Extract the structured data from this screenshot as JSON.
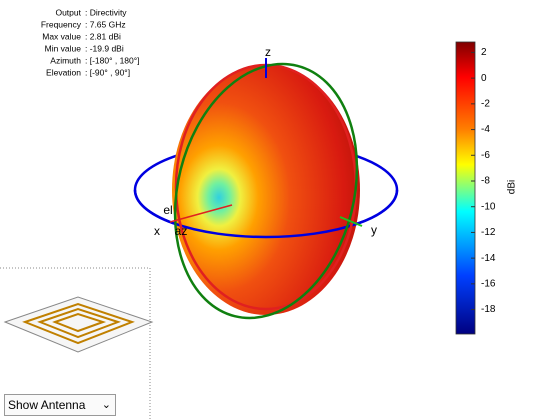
{
  "info": [
    {
      "label": "Output",
      "value": ": Directivity"
    },
    {
      "label": "Frequency",
      "value": ": 7.65 GHz"
    },
    {
      "label": "Max value",
      "value": ": 2.81 dBi"
    },
    {
      "label": "Min value",
      "value": ": -19.9 dBi"
    },
    {
      "label": "Azimuth",
      "value": ": [-180° , 180°]"
    },
    {
      "label": "Elevation",
      "value": ": [-90° , 90°]"
    }
  ],
  "axes": {
    "x": "x",
    "y": "y",
    "z": "z",
    "el": "el",
    "az": "az"
  },
  "colorbar": {
    "label": "dBi",
    "lim": [
      -19.9,
      2.81
    ],
    "ticks": [
      2,
      0,
      -2,
      -4,
      -6,
      -8,
      -10,
      -12,
      -14,
      -16,
      -18
    ]
  },
  "dropdown": {
    "selected": "Show Antenna"
  }
}
